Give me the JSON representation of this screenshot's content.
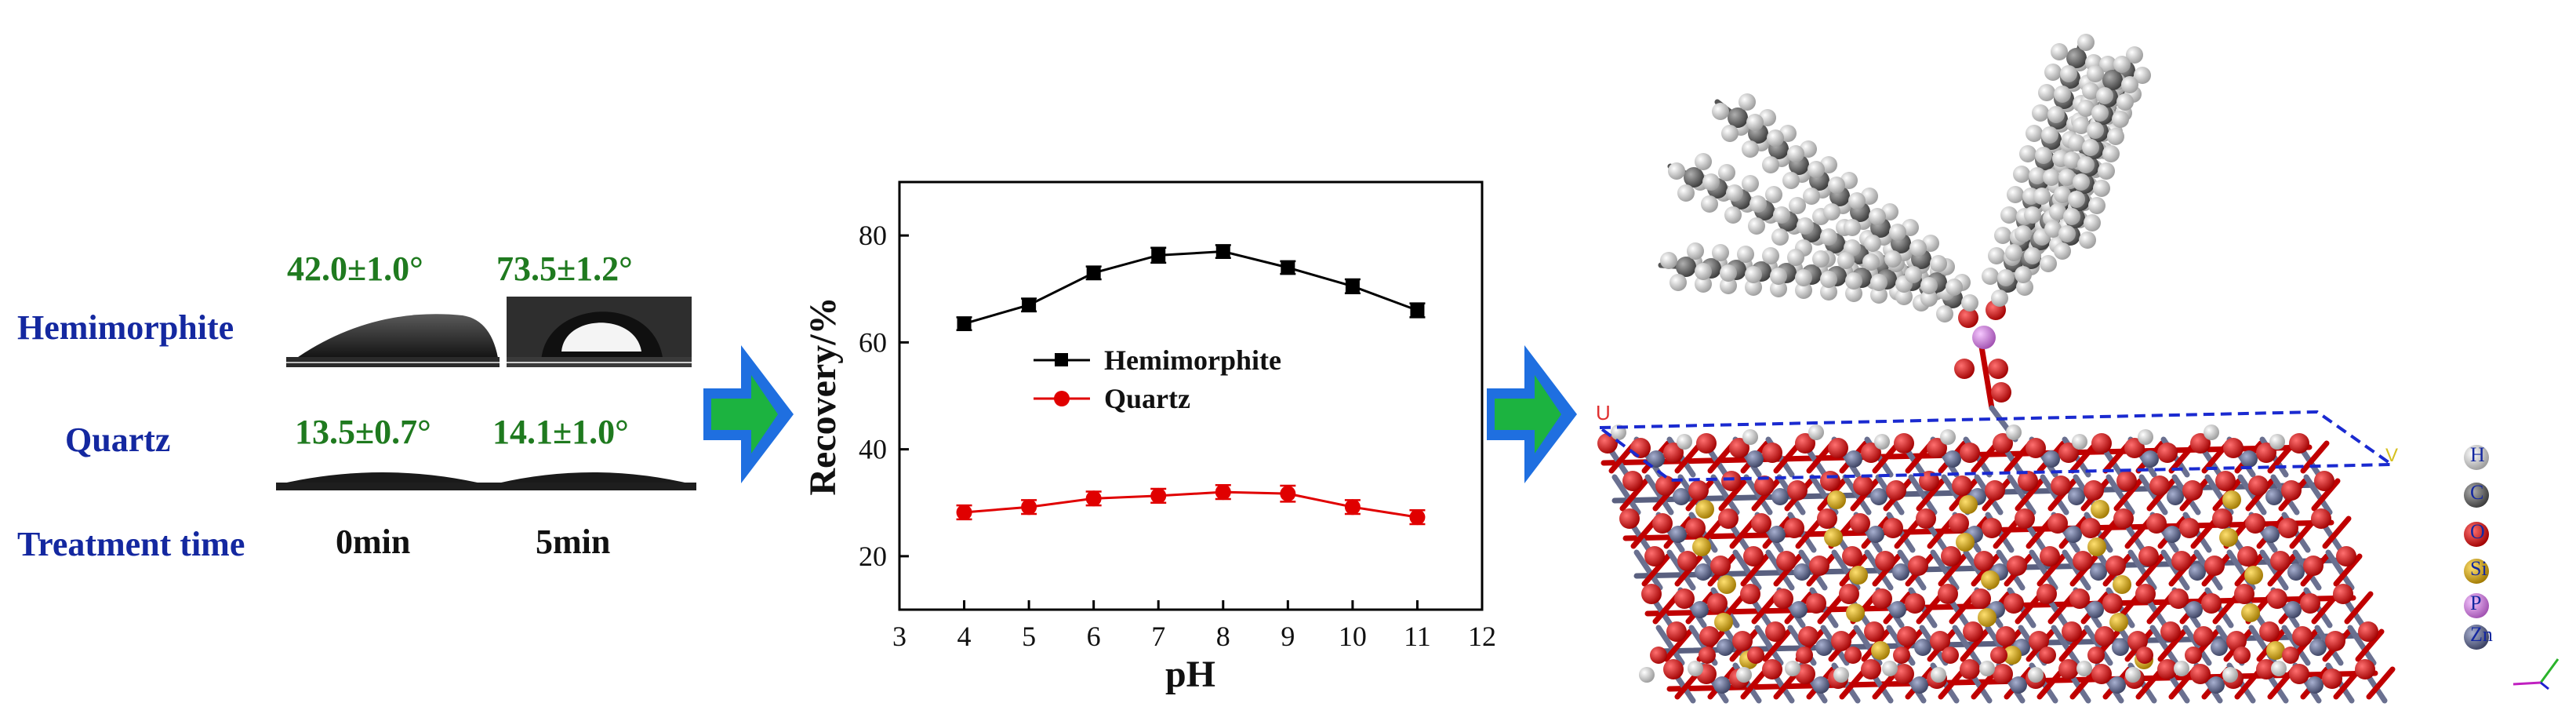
{
  "contact_angle_panel": {
    "row_labels": {
      "hemimorphite": "Hemimorphite",
      "quartz": "Quartz",
      "treatment": "Treatment time"
    },
    "angles": {
      "hemimorphite_0": "42.0±1.0°",
      "hemimorphite_5": "73.5±1.2°",
      "quartz_0": "13.5±0.7°",
      "quartz_5": "14.1±1.0°"
    },
    "times": {
      "t0": "0min",
      "t5": "5min"
    },
    "colors": {
      "label": "#1428a0",
      "angle": "#1f7a1f"
    }
  },
  "arrows": {
    "color_outer": "#1f6fe0",
    "color_inner": "#1cb340"
  },
  "chart_data": {
    "type": "line",
    "x": [
      4,
      5,
      6,
      7,
      8,
      9,
      10,
      11
    ],
    "xlabel": "pH",
    "ylabel": "Recovery/%",
    "xlim": [
      3,
      12
    ],
    "ylim": [
      10,
      90
    ],
    "xticks": [
      3,
      4,
      5,
      6,
      7,
      8,
      9,
      10,
      11,
      12
    ],
    "yticks": [
      20,
      40,
      60,
      80
    ],
    "grid": false,
    "legend_position": "center",
    "series": [
      {
        "name": "Hemimorphite",
        "color": "#000000",
        "marker": "square",
        "values": [
          63.5,
          67.0,
          73.0,
          76.3,
          77.0,
          74.0,
          70.5,
          66.0
        ],
        "errors": [
          1.2,
          1.2,
          1.2,
          1.4,
          1.2,
          1.2,
          1.3,
          1.3
        ]
      },
      {
        "name": "Quartz",
        "color": "#e00000",
        "marker": "circle",
        "values": [
          28.2,
          29.2,
          30.8,
          31.3,
          32.0,
          31.7,
          29.2,
          27.3
        ],
        "errors": [
          1.3,
          1.3,
          1.3,
          1.3,
          1.3,
          1.5,
          1.3,
          1.3
        ]
      }
    ]
  },
  "molecule_panel": {
    "legend": [
      {
        "label": "H",
        "color": "#e8e8e8"
      },
      {
        "label": "C",
        "color": "#6e6e6e"
      },
      {
        "label": "O",
        "color": "#e00000"
      },
      {
        "label": "Si",
        "color": "#d4a017"
      },
      {
        "label": "P",
        "color": "#d98ae0"
      },
      {
        "label": "Zn",
        "color": "#6a7090"
      }
    ],
    "axis_labels": {
      "u": "U",
      "v": "V"
    }
  }
}
